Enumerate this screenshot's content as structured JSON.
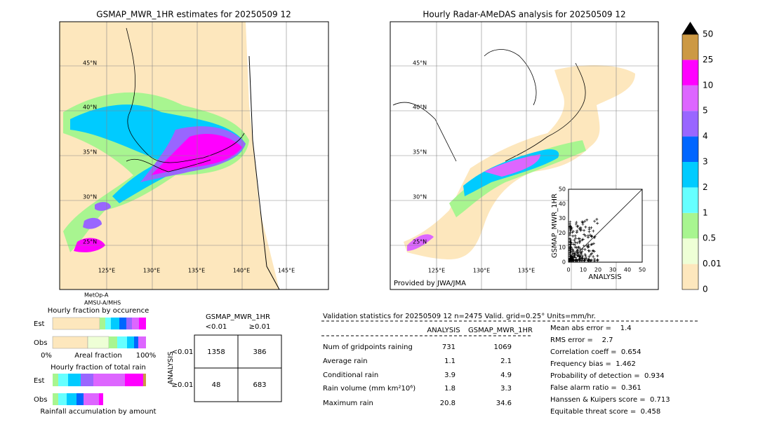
{
  "maps": [
    {
      "title": "GSMAP_MWR_1HR estimates for 20250509 12",
      "lat_labels": [
        "45°N",
        "40°N",
        "35°N",
        "30°N",
        "25°N"
      ],
      "lon_labels": [
        "125°E",
        "130°E",
        "135°E",
        "140°E",
        "145°E"
      ]
    },
    {
      "title": "Hourly Radar-AMeDAS analysis for 20250509 12",
      "lat_labels": [
        "45°N",
        "40°N",
        "35°N",
        "30°N",
        "25°N"
      ],
      "lon_labels": [
        "125°E",
        "130°E",
        "135°E"
      ],
      "credit": "Provided by JWA/JMA"
    }
  ],
  "satellite": [
    "MetOp-A",
    "AMSU-A/MHS"
  ],
  "colorbar": {
    "labels": [
      "0",
      "0.01",
      "0.5",
      "1",
      "2",
      "3",
      "4",
      "5",
      "10",
      "25",
      "50"
    ],
    "colors": [
      "#fde7bd",
      "#eeffd6",
      "#a8f590",
      "#66ffff",
      "#00cbff",
      "#0066ff",
      "#9966ff",
      "#dd66ff",
      "#ff00ff",
      "#cc9944"
    ]
  },
  "scatter": {
    "ylabel": "GSMAP_MWR_1HR",
    "xlabel": "ANALYSIS",
    "ticks": [
      "0",
      "10",
      "20",
      "30",
      "40",
      "50"
    ]
  },
  "fractions": {
    "title1": "Hourly fraction by occurence",
    "rows": [
      "Est",
      "Obs"
    ],
    "axis": [
      "0%",
      "Areal fraction",
      "100%"
    ],
    "title2": "Hourly fraction of total rain",
    "footer": "Rainfall accumulation by amount"
  },
  "contingency": {
    "title": "GSMAP_MWR_1HR",
    "cols": [
      "<0.01",
      "≥0.01"
    ],
    "side": "ANALYSIS",
    "rows": [
      "<0.01",
      "≥0.01"
    ],
    "cells": [
      [
        "1358",
        "386"
      ],
      [
        "48",
        "683"
      ]
    ]
  },
  "validation": {
    "header": "Validation statistics for 20250509 12  n=2475 Valid. grid=0.25° Units=mm/hr.",
    "columns": [
      "ANALYSIS",
      "GSMAP_MWR_1HR"
    ],
    "rows": [
      [
        "Num of gridpoints raining",
        "731",
        "1069"
      ],
      [
        "Average rain",
        "1.1",
        "2.1"
      ],
      [
        "Conditional rain",
        "3.9",
        "4.9"
      ],
      [
        "Rain volume (mm km²10⁶)",
        "1.8",
        "3.3"
      ],
      [
        "Maximum rain",
        "20.8",
        "34.6"
      ]
    ],
    "scores": [
      "Mean abs error =    1.4",
      "RMS error =    2.7",
      "Correlation coeff =  0.654",
      "Frequency bias =  1.462",
      "Probability of detection =  0.934",
      "False alarm ratio =  0.361",
      "Hanssen & Kuipers score =  0.713",
      "Equitable threat score =  0.458"
    ]
  }
}
